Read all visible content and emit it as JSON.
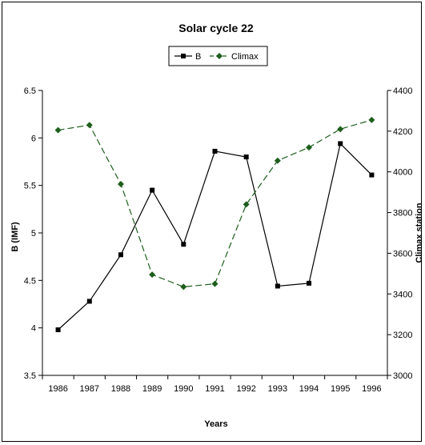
{
  "chart_data": {
    "type": "line",
    "title": "Solar cycle 22",
    "xlabel": "Years",
    "ylabel_left": "B (IMF)",
    "ylabel_right": "Climax station",
    "x": [
      "1986",
      "1987",
      "1988",
      "1989",
      "1990",
      "1991",
      "1992",
      "1993",
      "1994",
      "1995",
      "1996"
    ],
    "ylim_left": [
      3.5,
      6.5
    ],
    "yticks_left": [
      "3.5",
      "4",
      "4.5",
      "5",
      "5.5",
      "6",
      "6.5"
    ],
    "ylim_right": [
      3000,
      4400
    ],
    "yticks_right": [
      "3000",
      "3200",
      "3400",
      "3600",
      "3800",
      "4000",
      "4200",
      "4400"
    ],
    "grid": false,
    "legend_position": "top-center",
    "series": [
      {
        "name": "B",
        "axis": "left",
        "color": "#000000",
        "line_style": "solid",
        "marker": "square",
        "values": [
          3.98,
          4.28,
          4.77,
          5.45,
          4.88,
          5.86,
          5.8,
          4.44,
          4.47,
          5.94,
          5.61
        ]
      },
      {
        "name": "Climax",
        "axis": "right",
        "color": "#1e5e1e",
        "line_style": "dashed",
        "marker": "diamond",
        "values": [
          4205,
          4230,
          3940,
          3495,
          3435,
          3450,
          3840,
          4055,
          4120,
          4210,
          4255
        ]
      }
    ]
  }
}
